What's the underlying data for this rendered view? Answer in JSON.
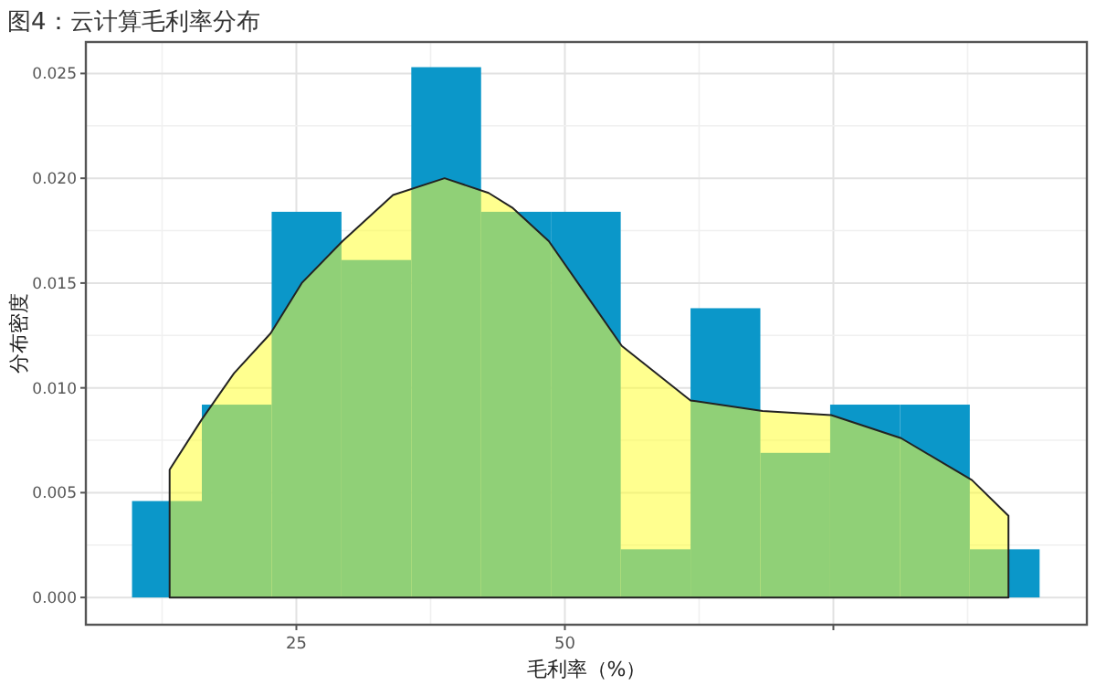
{
  "chart_data": {
    "type": "histogram",
    "title": "图4：云计算毛利率分布",
    "xlabel": "毛利率（%）",
    "ylabel": "分布密度",
    "xlim": [
      5.4,
      98.6
    ],
    "ylim": [
      -0.0013,
      0.0265
    ],
    "xticks": [
      25,
      50,
      {
        "value": 75,
        "label": null
      }
    ],
    "yticks": [
      {
        "value": 0,
        "label": "0.000"
      },
      {
        "value": 0.005,
        "label": "0.005"
      },
      {
        "value": 0.01,
        "label": "0.010"
      },
      {
        "value": 0.015,
        "label": "0.015"
      },
      {
        "value": 0.02,
        "label": "0.020"
      },
      {
        "value": 0.025,
        "label": "0.025"
      }
    ],
    "grid": true,
    "series": [
      {
        "color": "#0b97c9",
        "bins": [
          9.7,
          16.2,
          22.7,
          29.2,
          35.7,
          42.2,
          48.7,
          55.2,
          61.7,
          68.2,
          74.7,
          81.2,
          87.7,
          94.2
        ],
        "values": [
          0.0046,
          0.0092,
          0.0184,
          0.0161,
          0.0253,
          0.0184,
          0.0184,
          0.0023,
          0.0138,
          0.0069,
          0.0092,
          0.0092,
          0.0023
        ]
      },
      {
        "type": "area",
        "color": "#ffff33",
        "x": [
          13.2,
          16.2,
          19.2,
          22.6,
          25.5,
          29.3,
          34.0,
          38.8,
          42.9,
          45.1,
          48.5,
          51.9,
          55.3,
          61.7,
          68.4,
          74.8,
          81.3,
          87.9,
          91.3
        ],
        "values": [
          0.0061,
          0.0085,
          0.0107,
          0.0126,
          0.015,
          0.017,
          0.0192,
          0.02,
          0.0193,
          0.0186,
          0.017,
          0.0145,
          0.012,
          0.0094,
          0.0089,
          0.0087,
          0.0076,
          0.0056,
          0.0039
        ]
      }
    ]
  }
}
